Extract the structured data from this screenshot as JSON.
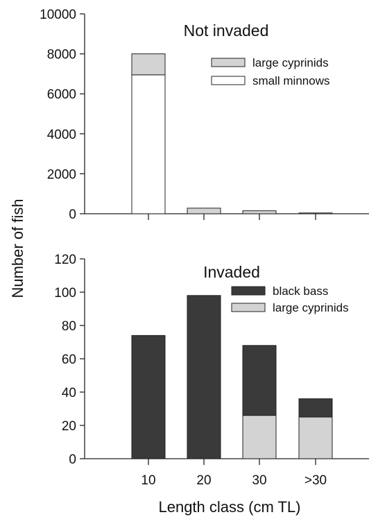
{
  "colors": {
    "black_bass": "#3a3a3a",
    "large_cyprinids": "#d3d3d3",
    "small_minnows": "#ffffff",
    "axis": "#222222"
  },
  "axes": {
    "xlabel": "Length class (cm TL)",
    "ylabel": "Number of fish"
  },
  "chart_data": [
    {
      "type": "bar",
      "stacked": true,
      "title": "Not invaded",
      "categories": [
        "10",
        "20",
        "30",
        ">30"
      ],
      "series": [
        {
          "name": "small minnows",
          "values": [
            6950,
            0,
            0,
            0
          ],
          "color": "#ffffff"
        },
        {
          "name": "large cyprinids",
          "values": [
            1050,
            280,
            150,
            40
          ],
          "color": "#d3d3d3"
        }
      ],
      "legend_order": [
        "large cyprinids",
        "small minnows"
      ],
      "yticks": [
        "0",
        "2000",
        "4000",
        "6000",
        "8000",
        "10000"
      ],
      "ylim": [
        0,
        10000
      ],
      "show_xtick_labels": false,
      "legend_position": "top-right",
      "grid": false
    },
    {
      "type": "bar",
      "stacked": true,
      "title": "Invaded",
      "categories": [
        "10",
        "20",
        "30",
        ">30"
      ],
      "series": [
        {
          "name": "large cyprinids",
          "values": [
            0,
            0,
            26,
            25
          ],
          "color": "#d3d3d3"
        },
        {
          "name": "black bass",
          "values": [
            74,
            98,
            42,
            11
          ],
          "color": "#3a3a3a"
        }
      ],
      "legend_order": [
        "black bass",
        "large cyprinids"
      ],
      "yticks": [
        "0",
        "20",
        "40",
        "60",
        "80",
        "100",
        "120"
      ],
      "ylim": [
        0,
        120
      ],
      "show_xtick_labels": true,
      "legend_position": "top-right",
      "grid": false
    }
  ]
}
